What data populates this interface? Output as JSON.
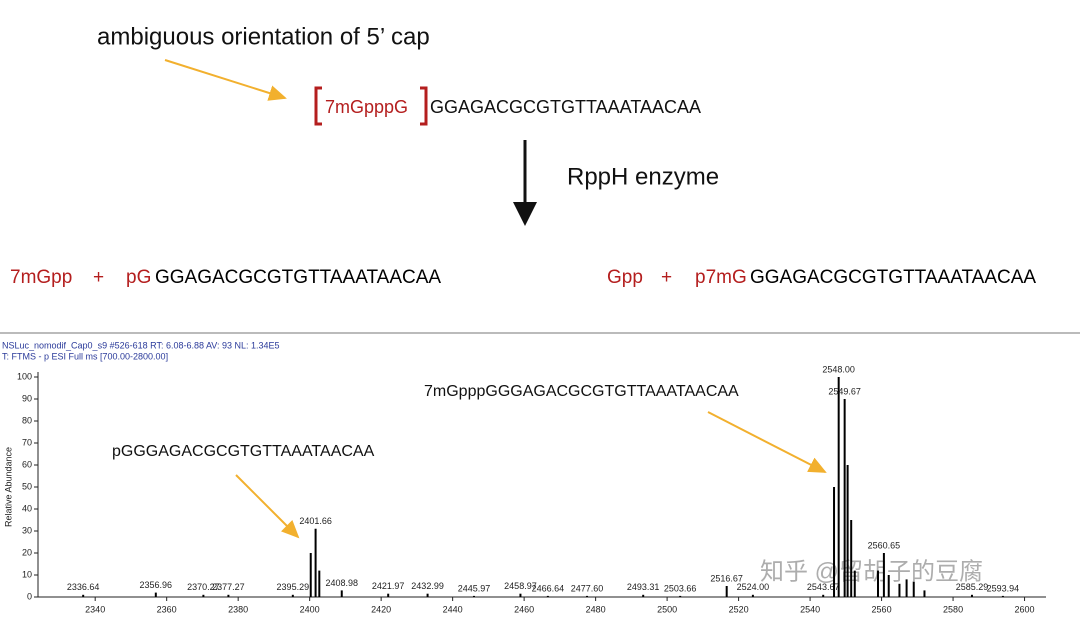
{
  "diagram": {
    "title": "ambiguous orientation of 5’ cap",
    "cap": "7mGpppG",
    "sequence": "GGAGACGCGTGTTAAATAACAA",
    "enzyme": "RppH enzyme",
    "products": [
      [
        "7mGpp",
        "+",
        "pG",
        "GGAGACGCGTGTTAAATAACAA"
      ],
      [
        "Gpp",
        "+",
        "p7mG",
        "GGAGACGCGTGTTAAATAACAA"
      ]
    ]
  },
  "chart_data": {
    "type": "spectrum",
    "header": [
      "NSLuc_nomodif_Cap0_s9 #526-618  RT: 6.08-6.88  AV: 93  NL: 1.34E5",
      "T: FTMS - p ESI Full ms [700.00-2800.00]"
    ],
    "y_label": "Relative Abundance",
    "annotations": [
      "7mGpppGGGAGACGCGTGTTAAATAACAA",
      "pGGGAGACGCGTGTTAAATAACAA"
    ],
    "x": [
      2336.64,
      2356.96,
      2370.27,
      2377.27,
      2395.29,
      2400.3,
      2401.66,
      2402.7,
      2408.98,
      2421.97,
      2432.99,
      2445.97,
      2458.97,
      2466.64,
      2477.6,
      2493.31,
      2503.66,
      2516.67,
      2524.0,
      2543.67,
      2546.7,
      2548.0,
      2549.67,
      2550.5,
      2551.5,
      2552.5,
      2559.0,
      2560.65,
      2562.0,
      2565.0,
      2567.0,
      2569.0,
      2572.0,
      2585.29,
      2593.94
    ],
    "x_labels": [
      "2336.64",
      "2356.96",
      "2370.27",
      "2377.27",
      "2395.29",
      null,
      "2401.66",
      null,
      "2408.98",
      "2421.97",
      "2432.99",
      "2445.97",
      "2458.97",
      "2466.64",
      "2477.60",
      "2493.31",
      "2503.66",
      "2516.67",
      "2524.00",
      "2543.67",
      null,
      "2548.00",
      "2549.67",
      null,
      null,
      null,
      null,
      "2560.65",
      null,
      null,
      null,
      null,
      null,
      "2585.29",
      "2593.94"
    ],
    "values": [
      1,
      2,
      1,
      1,
      1,
      20,
      31,
      12,
      3,
      1.5,
      1.5,
      0.5,
      1.5,
      0.5,
      0.5,
      1,
      0.5,
      5,
      1,
      1,
      50,
      100,
      90,
      60,
      35,
      12,
      12,
      20,
      10,
      6,
      8,
      7,
      3,
      1,
      0.5
    ],
    "color": "#000000",
    "xlim": [
      2324,
      2606
    ],
    "ylim": [
      0,
      100
    ],
    "xticks": [
      2340,
      2360,
      2380,
      2400,
      2420,
      2440,
      2460,
      2480,
      2500,
      2520,
      2540,
      2560,
      2580,
      2600
    ],
    "yticks": [
      0,
      10,
      20,
      30,
      40,
      50,
      60,
      70,
      80,
      90,
      100
    ]
  },
  "watermark": "知乎 @留胡子的豆腐"
}
